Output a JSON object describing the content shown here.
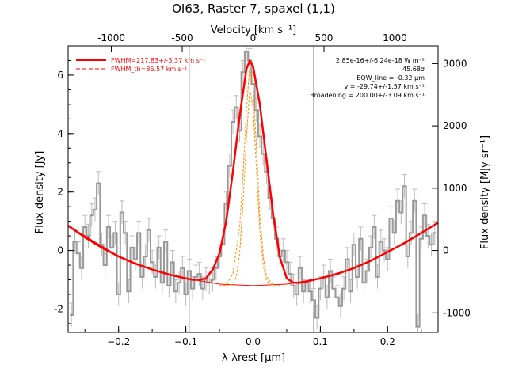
{
  "chart_data": {
    "type": "line",
    "title": "OI63, Raster 7, spaxel (1,1)",
    "xlabel": "λ-λrest [μm]",
    "ylabel": "Flux density [Jy]",
    "top_axis": {
      "label": "Velocity [km s⁻¹]",
      "ticks": [
        -1000,
        -500,
        0,
        500,
        1000
      ]
    },
    "right_axis": {
      "label": "Flux density [MJy sr⁻¹]",
      "ticks": [
        -1000,
        0,
        1000,
        2000,
        3000
      ]
    },
    "xlim": [
      -0.275,
      0.275
    ],
    "ylim": [
      -2.8,
      7.0
    ],
    "x_ticks": [
      -0.2,
      -0.1,
      0.0,
      0.1,
      0.2
    ],
    "x_tick_labels": [
      "−0.2",
      "−0.1",
      "0.0",
      "0.1",
      "0.2"
    ],
    "y_ticks": [
      -2,
      0,
      2,
      4,
      6
    ],
    "vertical_lines_x": [
      -0.095,
      0.09
    ],
    "center_line_x": 0.0,
    "legend": {
      "placement": "top-left",
      "entries": [
        {
          "label": "FWHM=217.83+/-3.37 km s⁻¹",
          "style": "solid",
          "color": "#ff0000"
        },
        {
          "label": "FWHM_th=86.57 km s⁻¹",
          "style": "dashed",
          "color": "#ff0000"
        }
      ]
    },
    "annotations": [
      "2.85e-16+/-6.24e-18 W m⁻²",
      "45.68σ",
      "EQW_line = -0.32 μm",
      "v = -29.74+/-1.57 km s⁻¹",
      "Broadening = 200.00+/-3.09 km s⁻¹"
    ],
    "series": [
      {
        "color": "#999999",
        "x": [
          -0.27,
          -0.265,
          -0.26,
          -0.255,
          -0.25,
          -0.245,
          -0.24,
          -0.235,
          -0.23,
          -0.225,
          -0.22,
          -0.215,
          -0.21,
          -0.205,
          -0.2,
          -0.195,
          -0.19,
          -0.185,
          -0.18,
          -0.175,
          -0.17,
          -0.165,
          -0.16,
          -0.155,
          -0.15,
          -0.145,
          -0.14,
          -0.135,
          -0.13,
          -0.125,
          -0.12,
          -0.115,
          -0.11,
          -0.105,
          -0.1,
          -0.095,
          -0.09,
          -0.085,
          -0.08,
          -0.075,
          -0.07,
          -0.065,
          -0.06,
          -0.055,
          -0.05,
          -0.045,
          -0.04,
          -0.035,
          -0.03,
          -0.025,
          -0.02,
          -0.015,
          -0.01,
          -0.005,
          0.0,
          0.005,
          0.01,
          0.015,
          0.02,
          0.025,
          0.03,
          0.035,
          0.04,
          0.045,
          0.05,
          0.055,
          0.06,
          0.065,
          0.07,
          0.075,
          0.08,
          0.085,
          0.09,
          0.095,
          0.1,
          0.105,
          0.11,
          0.115,
          0.12,
          0.125,
          0.13,
          0.135,
          0.14,
          0.145,
          0.15,
          0.155,
          0.16,
          0.165,
          0.17,
          0.175,
          0.18,
          0.185,
          0.19,
          0.195,
          0.2,
          0.205,
          0.21,
          0.215,
          0.22,
          0.225,
          0.23,
          0.235,
          0.24,
          0.245,
          0.25,
          0.255,
          0.26,
          0.265,
          0.27
        ],
        "values": [
          -2.2,
          0.3,
          -0.1,
          -0.6,
          0.8,
          0.5,
          1.2,
          1.4,
          2.3,
          0.2,
          -0.5,
          0.8,
          0.1,
          0.6,
          -1.5,
          1.3,
          0.6,
          -1.4,
          0.1,
          -0.3,
          0.6,
          -0.9,
          -0.2,
          0.7,
          -0.4,
          -0.9,
          0.1,
          -1.1,
          0.3,
          -1.2,
          -0.4,
          -1.4,
          -1.1,
          -0.6,
          -1.5,
          -0.7,
          -1.3,
          -0.9,
          -0.8,
          -1.3,
          -1.0,
          -1.1,
          -1.0,
          -0.6,
          -0.2,
          0.2,
          1.6,
          2.9,
          4.4,
          4.9,
          4.1,
          6.1,
          6.8,
          6.5,
          5.7,
          4.8,
          3.9,
          3.3,
          2.7,
          1.8,
          1.1,
          0.4,
          -0.2,
          0.0,
          -0.4,
          -0.8,
          -1.2,
          -1.5,
          -0.6,
          -1.4,
          -1.1,
          -1.4,
          -1.7,
          -2.3,
          -1.3,
          -0.9,
          -1.6,
          -0.7,
          -1.3,
          -1.6,
          -1.9,
          -1.3,
          -0.3,
          -1.4,
          0.2,
          -0.9,
          0.4,
          -1.1,
          -0.7,
          0.1,
          0.8,
          -0.9,
          0.3,
          0.0,
          -0.3,
          1.1,
          0.6,
          1.7,
          1.3,
          2.2,
          -0.2,
          0.6,
          1.7,
          -2.6,
          0.4,
          1.2,
          0.5,
          0.2,
          0.6
        ],
        "errors": [
          0.4,
          0.4,
          0.4,
          0.4,
          0.4,
          0.4,
          0.4,
          0.4,
          0.4,
          0.4,
          0.4,
          0.4,
          0.4,
          0.4,
          0.4,
          0.4,
          0.4,
          0.4,
          0.4,
          0.4,
          0.4,
          0.4,
          0.4,
          0.4,
          0.4,
          0.4,
          0.4,
          0.4,
          0.4,
          0.4,
          0.4,
          0.4,
          0.4,
          0.4,
          0.4,
          0.4,
          0.4,
          0.4,
          0.4,
          0.4,
          0.4,
          0.4,
          0.4,
          0.4,
          0.4,
          0.4,
          0.4,
          0.4,
          0.4,
          0.4,
          0.4,
          0.4,
          0.4,
          0.4,
          0.4,
          0.4,
          0.4,
          0.4,
          0.4,
          0.4,
          0.4,
          0.4,
          0.4,
          0.4,
          0.4,
          0.4,
          0.4,
          0.4,
          0.4,
          0.4,
          0.4,
          0.4,
          0.4,
          0.4,
          0.4,
          0.4,
          0.4,
          0.4,
          0.4,
          0.4,
          0.4,
          0.4,
          0.4,
          0.4,
          0.4,
          0.4,
          0.4,
          0.4,
          0.4,
          0.4,
          0.4,
          0.4,
          0.4,
          0.4,
          0.4,
          0.4,
          0.4,
          0.4,
          0.4,
          0.4,
          0.4,
          0.4,
          0.4,
          0.4,
          0.4,
          0.4,
          0.4,
          0.4,
          0.4
        ]
      },
      {
        "color": "#ff0000",
        "x": [
          -0.275,
          -0.25,
          -0.225,
          -0.2,
          -0.175,
          -0.15,
          -0.125,
          -0.1,
          -0.09,
          -0.08,
          -0.07,
          -0.06,
          -0.05,
          -0.04,
          -0.03,
          -0.02,
          -0.01,
          -0.005,
          0.0,
          0.01,
          0.02,
          0.03,
          0.04,
          0.05,
          0.06,
          0.07,
          0.08,
          0.1,
          0.125,
          0.15,
          0.175,
          0.2,
          0.225,
          0.25,
          0.275
        ],
        "values": [
          0.85,
          0.45,
          0.1,
          -0.2,
          -0.45,
          -0.65,
          -0.82,
          -0.95,
          -1.0,
          -1.0,
          -0.95,
          -0.65,
          -0.1,
          1.0,
          2.7,
          4.6,
          6.2,
          6.5,
          6.3,
          5.0,
          3.1,
          1.2,
          -0.25,
          -0.95,
          -1.1,
          -1.1,
          -1.05,
          -0.95,
          -0.8,
          -0.6,
          -0.35,
          -0.05,
          0.25,
          0.6,
          0.95
        ]
      },
      {
        "color": "#ff0000",
        "x": [
          -0.275,
          -0.2,
          -0.15,
          -0.1,
          -0.05,
          0.0,
          0.05,
          0.1,
          0.15,
          0.2,
          0.275
        ],
        "values": [
          0.85,
          -0.2,
          -0.65,
          -0.95,
          -1.15,
          -1.2,
          -1.15,
          -0.95,
          -0.6,
          -0.05,
          0.95
        ]
      },
      {
        "color": "#ff8c00",
        "x": [
          -0.05,
          -0.04,
          -0.03,
          -0.02,
          -0.015,
          -0.01,
          -0.005,
          0.0,
          0.005,
          0.01,
          0.015,
          0.02,
          0.03,
          0.04
        ],
        "values": [
          -1.2,
          -1.18,
          -0.8,
          0.8,
          2.6,
          4.8,
          6.3,
          5.6,
          3.5,
          1.2,
          -0.2,
          -0.9,
          -1.18,
          -1.2
        ]
      },
      {
        "color": "#ff8c00",
        "x": [
          -0.04,
          -0.03,
          -0.025,
          -0.02,
          -0.015,
          -0.01,
          -0.005,
          0.0,
          0.005,
          0.01,
          0.015,
          0.02,
          0.03
        ],
        "values": [
          -1.2,
          -1.15,
          -0.9,
          -0.1,
          1.6,
          3.8,
          5.5,
          4.9,
          2.8,
          0.7,
          -0.5,
          -1.05,
          -1.2
        ]
      }
    ]
  }
}
